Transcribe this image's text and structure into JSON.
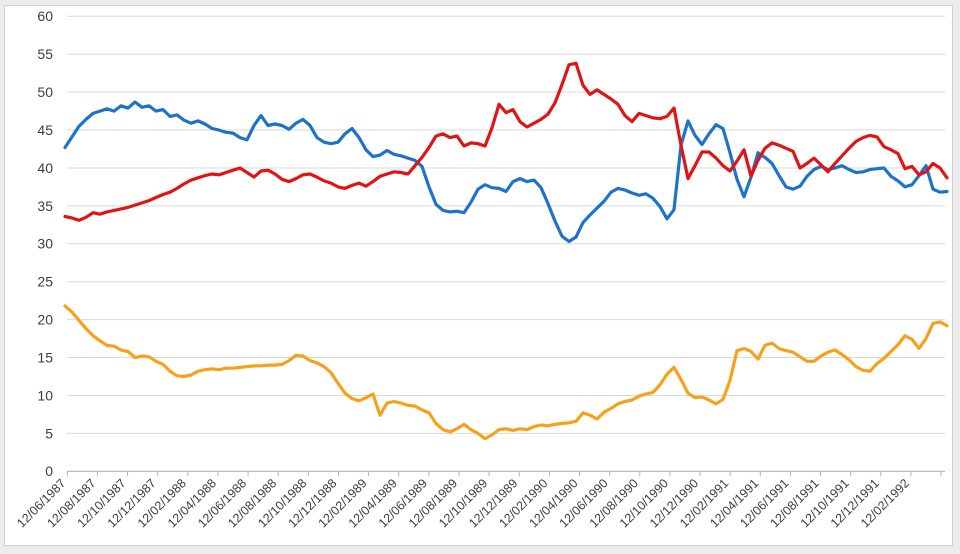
{
  "chart_data": {
    "type": "line",
    "title": "",
    "legend": "none",
    "grid": "horizontal",
    "ylim": [
      0,
      60
    ],
    "y_ticks": [
      0,
      5,
      10,
      15,
      20,
      25,
      30,
      35,
      40,
      45,
      50,
      55,
      60
    ],
    "x_tick_labels": [
      "12/06/1987",
      "12/08/1987",
      "12/10/1987",
      "12/12/1987",
      "12/02/1988",
      "12/04/1988",
      "12/06/1988",
      "12/08/1988",
      "12/10/1988",
      "12/12/1988",
      "12/02/1989",
      "12/04/1989",
      "12/06/1989",
      "12/08/1989",
      "12/10/1989",
      "12/12/1989",
      "12/02/1990",
      "12/04/1990",
      "12/06/1990",
      "12/08/1990",
      "12/10/1990",
      "12/12/1990",
      "12/02/1991",
      "12/04/1991",
      "12/06/1991",
      "12/08/1991",
      "12/10/1991",
      "12/12/1991",
      "12/02/1992"
    ],
    "colors": {
      "blue": "#1e73c8",
      "red": "#e01414",
      "orange": "#f7a11a",
      "gridline": "#d9d9d9",
      "axis_line": "#b3b3b3",
      "tick_text": "#3d3d3d"
    },
    "series": [
      {
        "name": "blue",
        "color": "#1e73c8",
        "values": [
          42.7,
          44.1,
          45.5,
          46.4,
          47.2,
          47.5,
          47.8,
          47.5,
          48.2,
          47.9,
          48.7,
          48.0,
          48.2,
          47.5,
          47.7,
          46.8,
          47.0,
          46.3,
          45.9,
          46.2,
          45.8,
          45.2,
          45.0,
          44.7,
          44.6,
          44.0,
          43.7,
          45.6,
          46.9,
          45.6,
          45.8,
          45.6,
          45.1,
          45.9,
          46.4,
          45.6,
          44.0,
          43.4,
          43.2,
          43.4,
          44.5,
          45.2,
          44.0,
          42.4,
          41.5,
          41.7,
          42.3,
          41.8,
          41.6,
          41.3,
          41.0,
          40.2,
          37.5,
          35.2,
          34.4,
          34.2,
          34.3,
          34.1,
          35.5,
          37.2,
          37.8,
          37.4,
          37.3,
          36.9,
          38.2,
          38.6,
          38.2,
          38.4,
          37.4,
          35.3,
          33.0,
          31.0,
          30.3,
          30.9,
          32.8,
          33.8,
          34.7,
          35.6,
          36.8,
          37.3,
          37.1,
          36.7,
          36.4,
          36.6,
          36.0,
          34.9,
          33.3,
          34.5,
          43.0,
          46.2,
          44.3,
          43.1,
          44.5,
          45.7,
          45.2,
          42.0,
          38.5,
          36.2,
          38.8,
          42.0,
          41.4,
          40.6,
          39.0,
          37.5,
          37.2,
          37.6,
          38.9,
          39.8,
          40.2,
          39.8,
          40.0,
          40.3,
          39.8,
          39.4,
          39.5,
          39.8,
          39.9,
          40.0,
          38.9,
          38.3,
          37.5,
          37.8,
          39.0,
          40.3,
          37.2,
          36.8,
          36.9
        ]
      },
      {
        "name": "red",
        "color": "#e01414",
        "values": [
          33.6,
          33.4,
          33.1,
          33.5,
          34.1,
          33.9,
          34.2,
          34.4,
          34.6,
          34.8,
          35.1,
          35.4,
          35.7,
          36.1,
          36.5,
          36.8,
          37.3,
          37.9,
          38.4,
          38.7,
          39.0,
          39.2,
          39.1,
          39.4,
          39.7,
          40.0,
          39.4,
          38.8,
          39.6,
          39.7,
          39.2,
          38.5,
          38.2,
          38.6,
          39.1,
          39.2,
          38.8,
          38.3,
          38.0,
          37.5,
          37.3,
          37.7,
          38.0,
          37.6,
          38.2,
          38.9,
          39.2,
          39.5,
          39.4,
          39.2,
          40.3,
          41.4,
          42.7,
          44.2,
          44.5,
          44.0,
          44.2,
          42.9,
          43.3,
          43.2,
          42.9,
          45.3,
          48.4,
          47.3,
          47.7,
          46.1,
          45.4,
          45.9,
          46.4,
          47.1,
          48.6,
          51.0,
          53.6,
          53.8,
          50.9,
          49.7,
          50.3,
          49.7,
          49.1,
          48.4,
          46.9,
          46.1,
          47.2,
          46.9,
          46.6,
          46.5,
          46.8,
          47.9,
          43.0,
          38.6,
          40.3,
          42.1,
          42.1,
          41.3,
          40.3,
          39.6,
          40.9,
          42.4,
          38.9,
          41.0,
          42.6,
          43.3,
          43.0,
          42.6,
          42.2,
          40.0,
          40.6,
          41.3,
          40.4,
          39.5,
          40.6,
          41.6,
          42.6,
          43.5,
          44.0,
          44.3,
          44.1,
          42.8,
          42.4,
          41.9,
          39.9,
          40.2,
          39.1,
          39.5,
          40.6,
          40.0,
          38.7
        ]
      },
      {
        "name": "orange",
        "color": "#f7a11a",
        "values": [
          21.8,
          21.0,
          19.9,
          18.8,
          17.9,
          17.2,
          16.6,
          16.5,
          16.0,
          15.8,
          15.0,
          15.2,
          15.1,
          14.5,
          14.1,
          13.2,
          12.6,
          12.5,
          12.7,
          13.2,
          13.4,
          13.5,
          13.4,
          13.6,
          13.6,
          13.7,
          13.8,
          13.9,
          13.9,
          14.0,
          14.0,
          14.1,
          14.6,
          15.3,
          15.2,
          14.6,
          14.3,
          13.8,
          13.0,
          11.6,
          10.3,
          9.6,
          9.3,
          9.7,
          10.2,
          7.4,
          9.0,
          9.2,
          9.0,
          8.7,
          8.6,
          8.1,
          7.7,
          6.3,
          5.5,
          5.2,
          5.6,
          6.2,
          5.5,
          5.0,
          4.3,
          4.8,
          5.5,
          5.6,
          5.4,
          5.6,
          5.5,
          5.9,
          6.1,
          6.0,
          6.2,
          6.3,
          6.4,
          6.6,
          7.7,
          7.4,
          6.9,
          7.8,
          8.3,
          8.9,
          9.2,
          9.4,
          9.9,
          10.2,
          10.4,
          11.4,
          12.8,
          13.7,
          12.1,
          10.3,
          9.7,
          9.8,
          9.4,
          8.9,
          9.5,
          12.0,
          15.9,
          16.2,
          15.8,
          14.8,
          16.6,
          16.9,
          16.2,
          15.9,
          15.7,
          15.1,
          14.5,
          14.5,
          15.2,
          15.7,
          16.0,
          15.4,
          14.7,
          13.8,
          13.3,
          13.2,
          14.2,
          14.9,
          15.8,
          16.7,
          17.9,
          17.4,
          16.2,
          17.5,
          19.5,
          19.7,
          19.2
        ]
      }
    ]
  }
}
